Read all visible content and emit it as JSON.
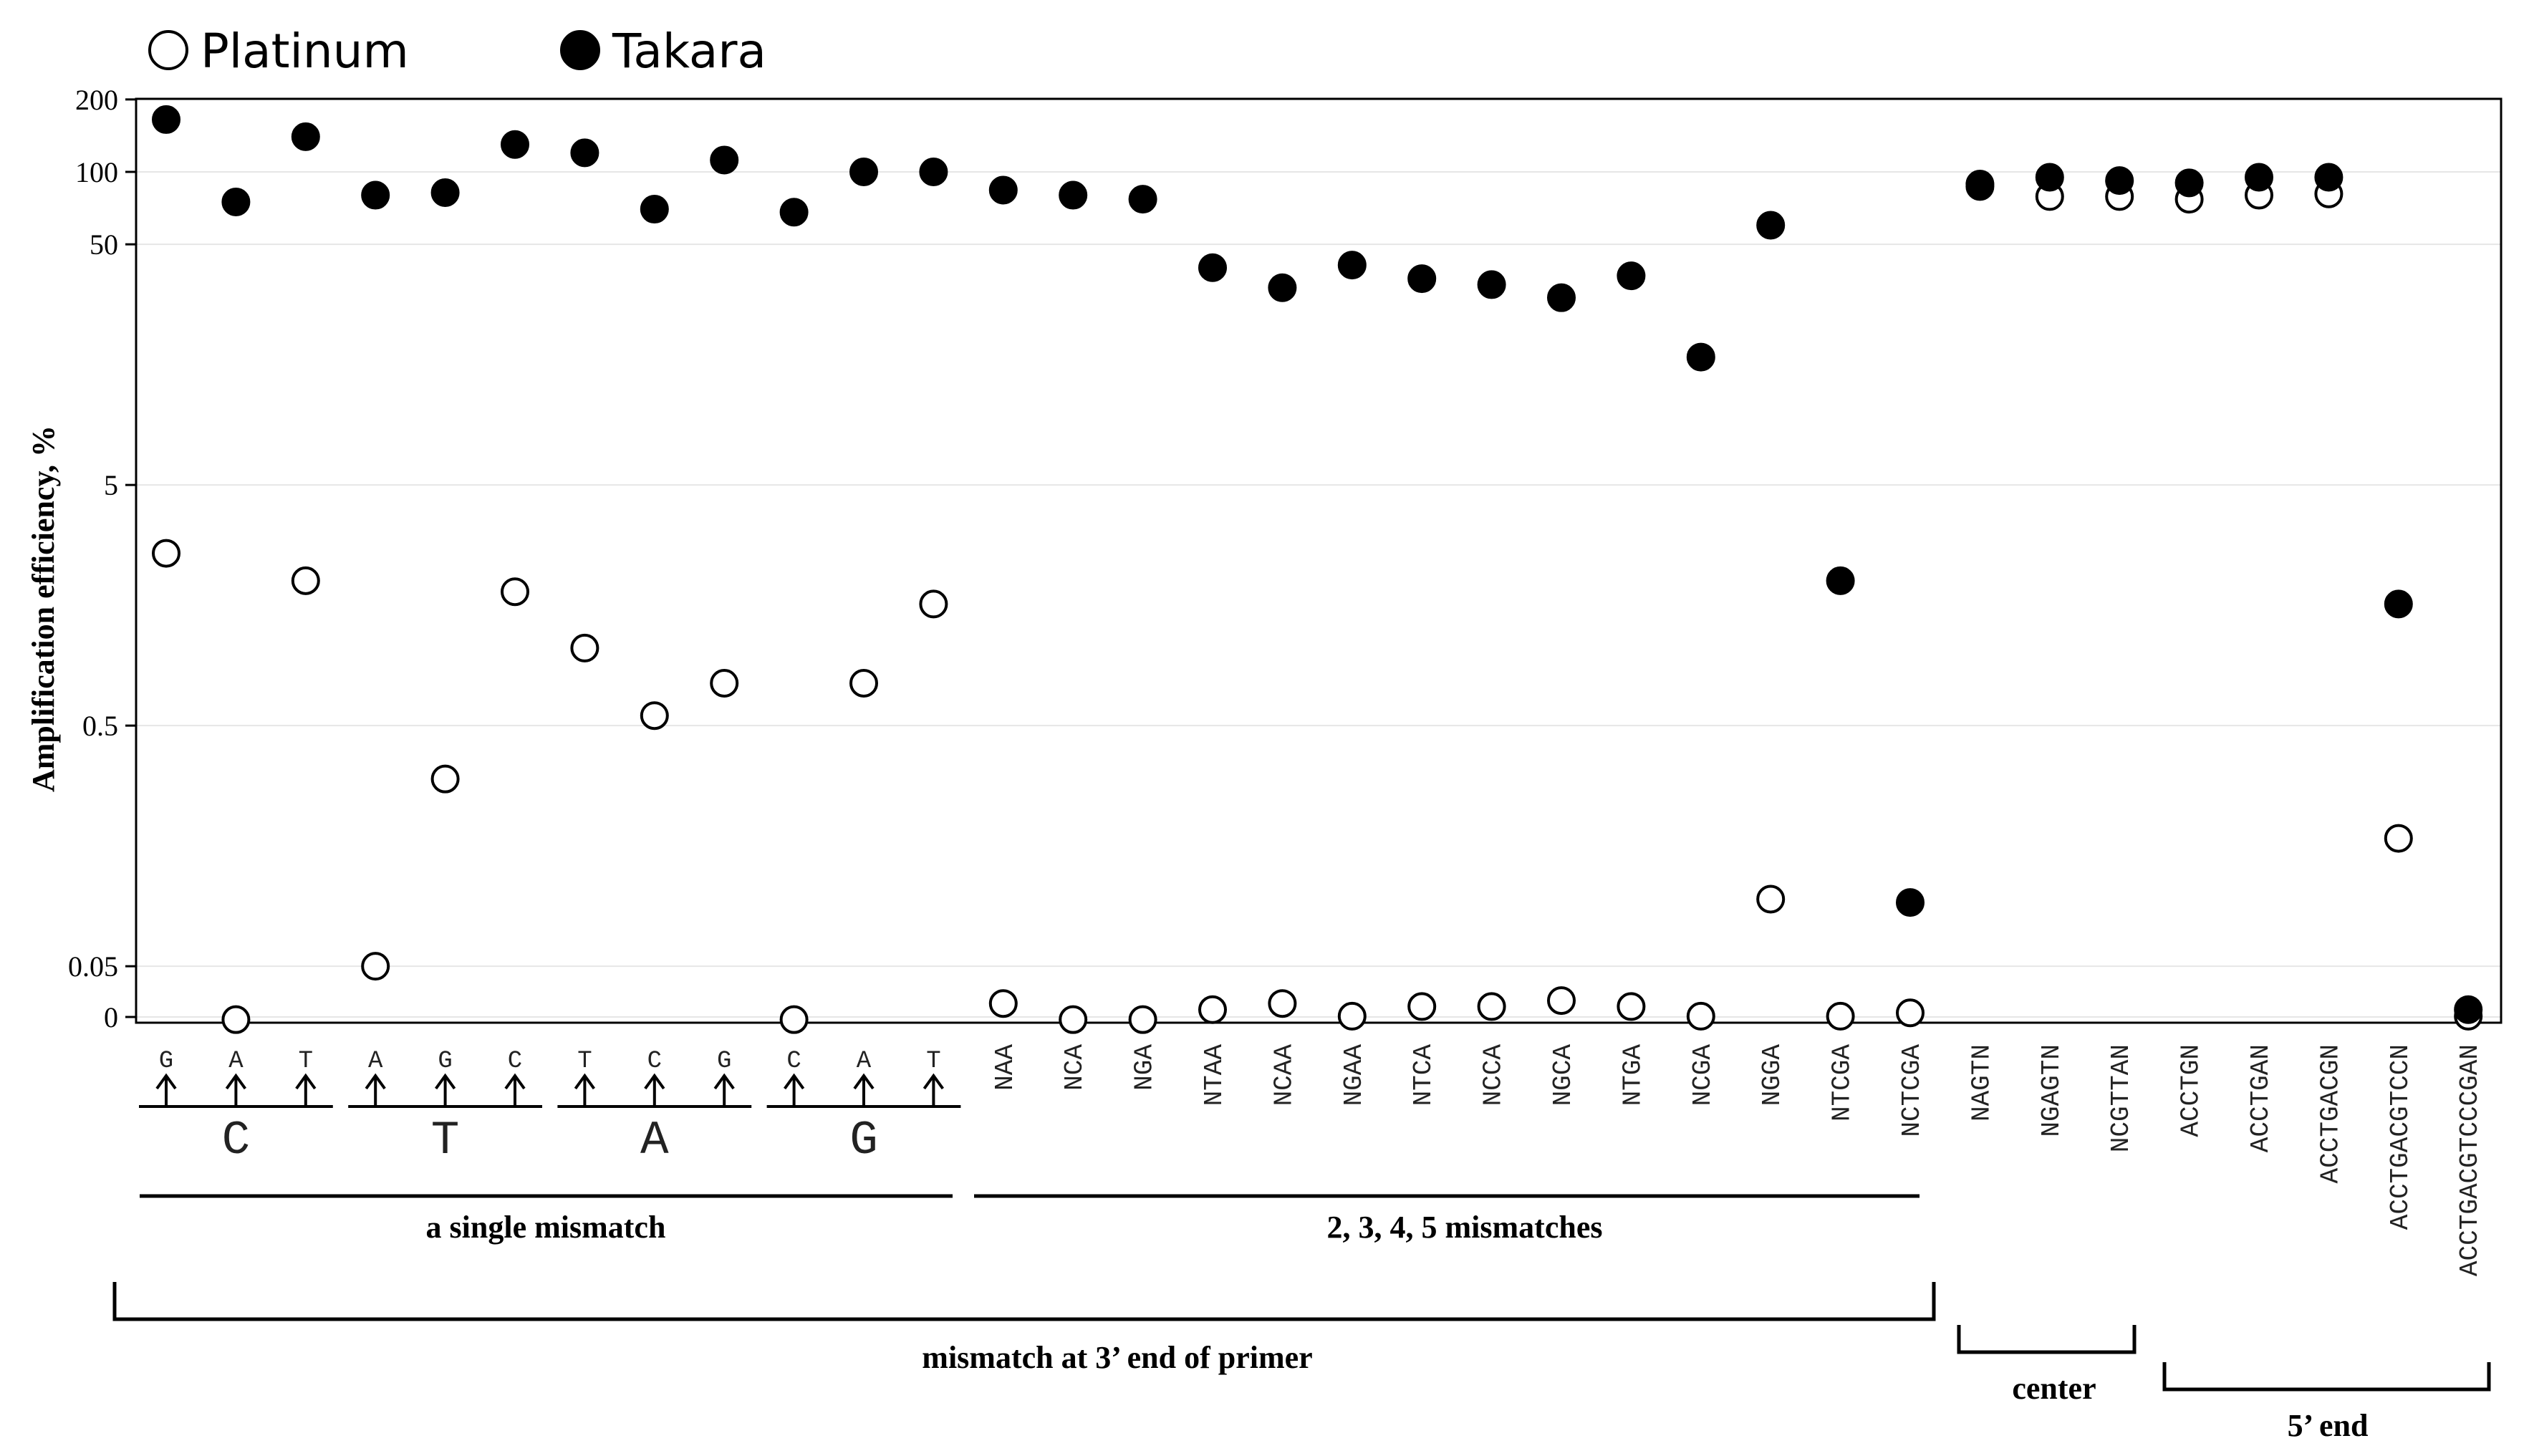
{
  "chart_data": {
    "type": "scatter",
    "ylabel": "Amplification efficiency, %",
    "yscale": "log (with 0 at bottom)",
    "y_ticks": [
      {
        "value": 200,
        "label": "200"
      },
      {
        "value": 100,
        "label": "100"
      },
      {
        "value": 50,
        "label": "50"
      },
      {
        "value": 5,
        "label": "5"
      },
      {
        "value": 0.5,
        "label": "0.5"
      },
      {
        "value": 0.05,
        "label": "0.05"
      },
      {
        "value": 0,
        "label": "0"
      }
    ],
    "ylim": [
      0,
      200
    ],
    "grid": "horizontal",
    "legend_position": "top-left",
    "legend": [
      {
        "name": "Platinum",
        "marker": "open-circle"
      },
      {
        "name": "Takara",
        "marker": "filled-circle"
      }
    ],
    "categories": [
      {
        "label": "G",
        "nucleotide": "C"
      },
      {
        "label": "A",
        "nucleotide": "C"
      },
      {
        "label": "T",
        "nucleotide": "C"
      },
      {
        "label": "A",
        "nucleotide": "T"
      },
      {
        "label": "G",
        "nucleotide": "T"
      },
      {
        "label": "C",
        "nucleotide": "T"
      },
      {
        "label": "T",
        "nucleotide": "A"
      },
      {
        "label": "C",
        "nucleotide": "A"
      },
      {
        "label": "G",
        "nucleotide": "A"
      },
      {
        "label": "C",
        "nucleotide": "G"
      },
      {
        "label": "A",
        "nucleotide": "G"
      },
      {
        "label": "T",
        "nucleotide": "G"
      },
      {
        "label": "NAA"
      },
      {
        "label": "NCA"
      },
      {
        "label": "NGA"
      },
      {
        "label": "NTAA"
      },
      {
        "label": "NCAA"
      },
      {
        "label": "NGAA"
      },
      {
        "label": "NTCA"
      },
      {
        "label": "NCCA"
      },
      {
        "label": "NGCA"
      },
      {
        "label": "NTGA"
      },
      {
        "label": "NCGA"
      },
      {
        "label": "NGGA"
      },
      {
        "label": "NTCGA"
      },
      {
        "label": "NCTCGA"
      },
      {
        "label": "NAGTN"
      },
      {
        "label": "NGAGTN"
      },
      {
        "label": "NCGTTAN"
      },
      {
        "label": "ACCTGN"
      },
      {
        "label": "ACCTGAN"
      },
      {
        "label": "ACCTGACGN"
      },
      {
        "label": "ACCTGACGTCCN"
      },
      {
        "label": "ACCTGACGTCCCGAN"
      }
    ],
    "nucleotide_groups": [
      "C",
      "T",
      "A",
      "G"
    ],
    "series": [
      {
        "name": "Platinum",
        "marker": "open-circle",
        "values": [
          2.6,
          0.03,
          2.0,
          0.05,
          0.3,
          1.8,
          1.05,
          0.55,
          0.75,
          0.03,
          0.75,
          1.6,
          0.035,
          0.03,
          0.03,
          0.033,
          0.035,
          0.031,
          0.034,
          0.034,
          0.036,
          0.034,
          0.031,
          0.095,
          0.031,
          0.032,
          87,
          79,
          79,
          77,
          80,
          81,
          0.17,
          0.031
        ]
      },
      {
        "name": "Takara",
        "marker": "filled-circle",
        "values": [
          165,
          75,
          140,
          80,
          82,
          130,
          120,
          70,
          112,
          68,
          100,
          100,
          84,
          80,
          77,
          40,
          33,
          41,
          36,
          34,
          30,
          37,
          17,
          60,
          2.0,
          0.092,
          89,
          95,
          92,
          90,
          95,
          95,
          1.6,
          0.033
        ]
      }
    ],
    "group_labels": {
      "single": "a single mismatch",
      "multi": "2, 3, 4, 5 mismatches",
      "three_prime": "mismatch at 3’  end of primer",
      "center": "center",
      "five_prime": "5’  end"
    }
  }
}
